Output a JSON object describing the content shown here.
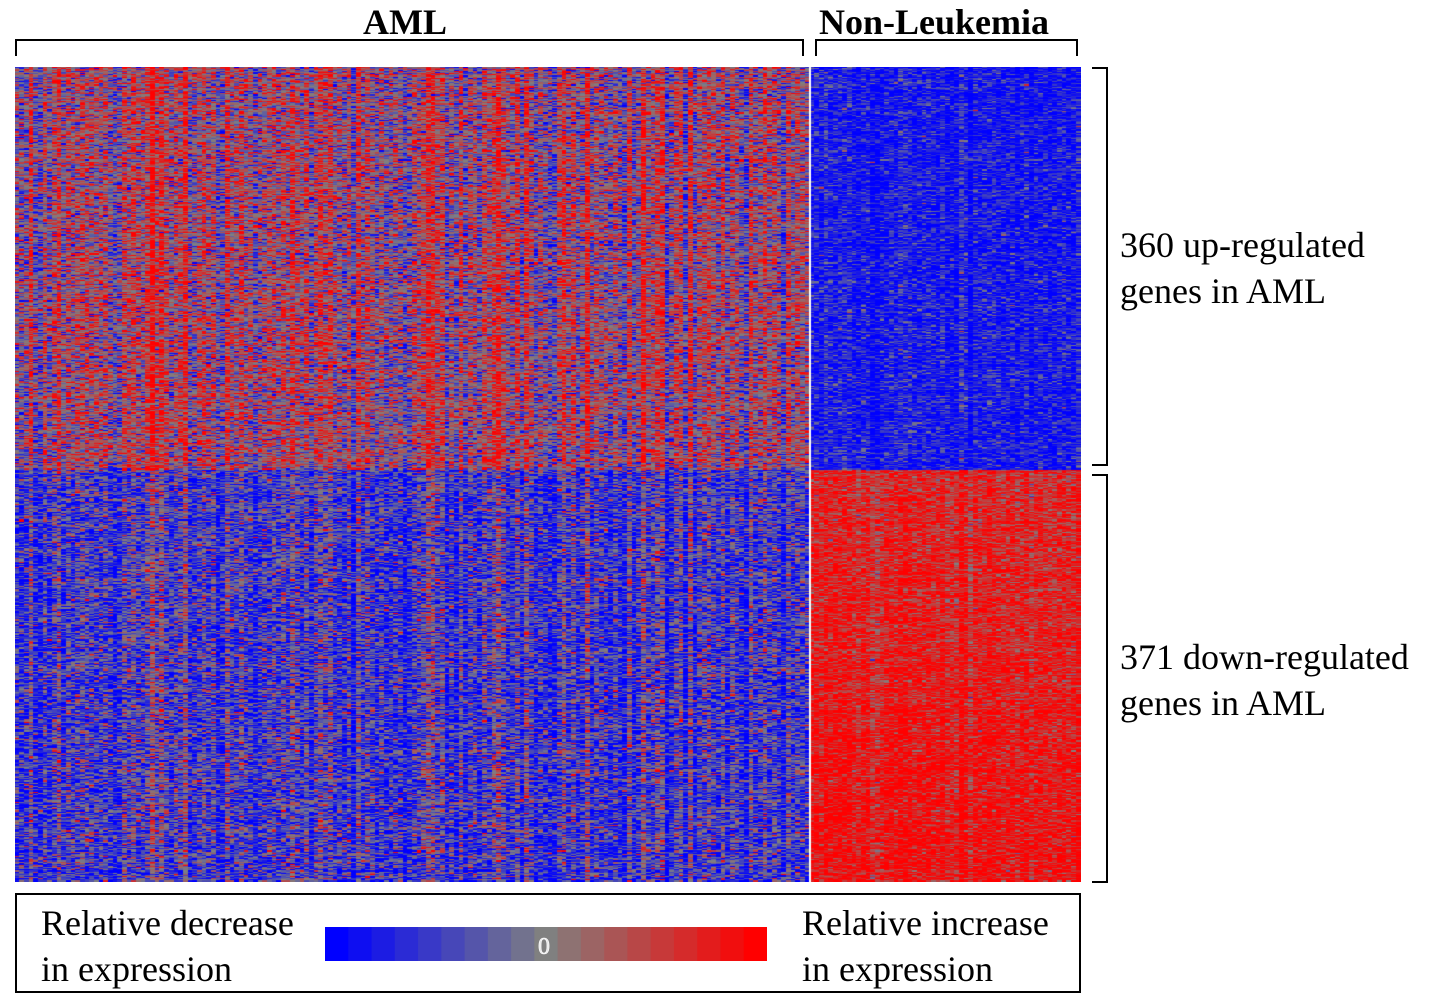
{
  "chart_data": {
    "type": "heatmap",
    "title": "",
    "column_groups": [
      {
        "name": "AML",
        "columns": 170
      },
      {
        "name": "Non-Leukemia",
        "columns": 58
      }
    ],
    "row_groups": [
      {
        "label_line1": "360 up-regulated",
        "label_line2": "genes in AML",
        "genes": 360
      },
      {
        "label_line1": "371 down-regulated",
        "label_line2": "genes in AML",
        "genes": 371
      }
    ],
    "value_range": [
      -1,
      1
    ],
    "color_scale": {
      "low": "#0000ff",
      "mid": "#808080",
      "high": "#ff0000"
    },
    "legend": {
      "left_line1": "Relative decrease",
      "left_line2": "in expression",
      "right_line1": "Relative increase",
      "right_line2": "in expression",
      "center_label": "0",
      "steps": 19
    },
    "mean_expression": [
      {
        "row_group": "360 up-regulated genes in AML",
        "column_group": "AML",
        "value": 0.15
      },
      {
        "row_group": "360 up-regulated genes in AML",
        "column_group": "Non-Leukemia",
        "value": -0.85
      },
      {
        "row_group": "371 down-regulated genes in AML",
        "column_group": "AML",
        "value": -0.5
      },
      {
        "row_group": "371 down-regulated genes in AML",
        "column_group": "Non-Leukemia",
        "value": 0.65
      }
    ]
  }
}
